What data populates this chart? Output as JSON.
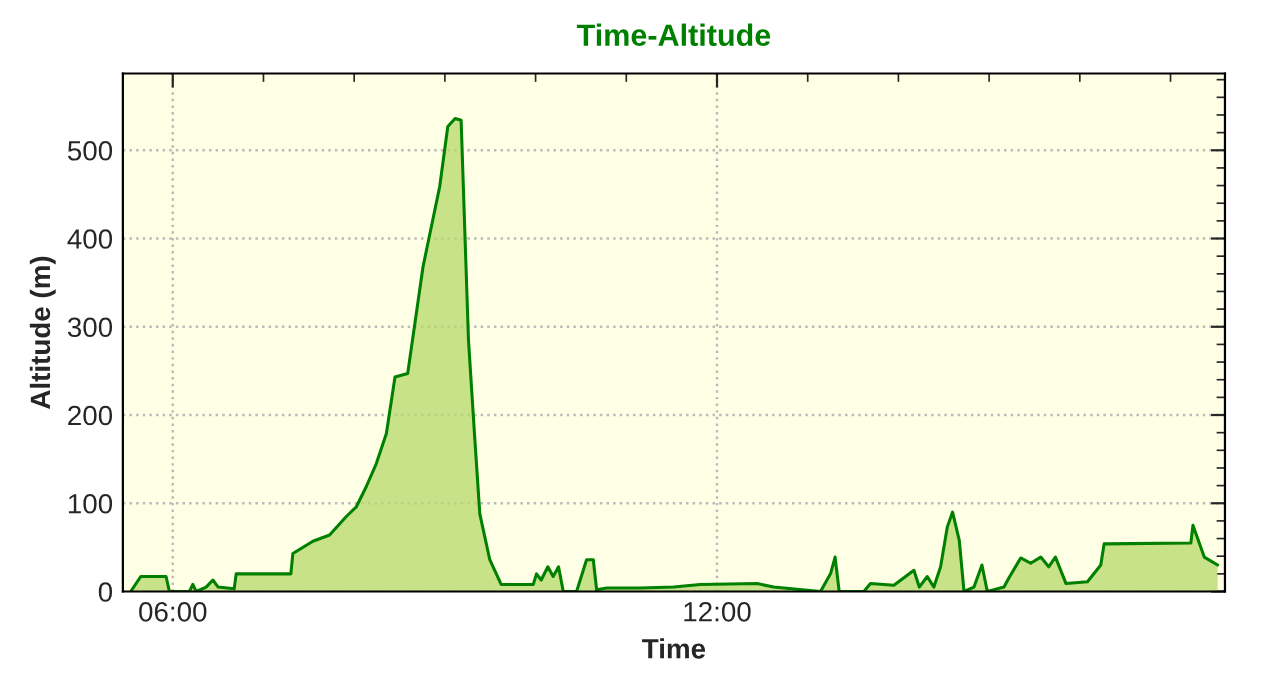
{
  "chart_data": {
    "type": "area",
    "title": "Time-Altitude",
    "xlabel": "Time",
    "ylabel": "Altitude (m)",
    "x": [
      5.536,
      5.647,
      5.926,
      5.963,
      6.184,
      6.221,
      6.258,
      6.368,
      6.442,
      6.5,
      6.677,
      6.699,
      7.302,
      7.324,
      7.545,
      7.729,
      7.913,
      8.024,
      8.134,
      8.244,
      8.355,
      8.45,
      8.59,
      8.759,
      8.943,
      9.032,
      9.113,
      9.179,
      9.26,
      9.326,
      9.385,
      9.495,
      9.62,
      9.974,
      10.01,
      10.062,
      10.135,
      10.194,
      10.253,
      10.305,
      10.452,
      10.562,
      10.636,
      10.673,
      10.783,
      11.151,
      11.522,
      11.816,
      12.442,
      12.625,
      13.141,
      13.251,
      13.302,
      13.347,
      13.619,
      13.692,
      13.95,
      14.171,
      14.23,
      14.318,
      14.391,
      14.465,
      14.539,
      14.597,
      14.671,
      14.723,
      14.833,
      14.921,
      14.98,
      15.164,
      15.216,
      15.348,
      15.458,
      15.569,
      15.657,
      15.731,
      15.848,
      16.084,
      16.231,
      16.268,
      17.224,
      17.247,
      17.372,
      17.519
    ],
    "series": [
      {
        "color": "#008000",
        "values": [
          0,
          17,
          17,
          0,
          0,
          8,
          0,
          5,
          13,
          5,
          3,
          20,
          20,
          43,
          57,
          64,
          85,
          96,
          119,
          145,
          179,
          243,
          247,
          368,
          459,
          527,
          536,
          534,
          285,
          179,
          88,
          36,
          8,
          8,
          20,
          13,
          28,
          17,
          28,
          0,
          0,
          36,
          36,
          2,
          4,
          4,
          5,
          8,
          9,
          5,
          0,
          20,
          39,
          0,
          0,
          9,
          7,
          24,
          5,
          17,
          5,
          28,
          73,
          90,
          58,
          0,
          5,
          30,
          0,
          5,
          15,
          38,
          32,
          39,
          28,
          39,
          9,
          11,
          30,
          54,
          55,
          75,
          39,
          30
        ]
      }
    ],
    "xlim": [
      5.45,
      17.6
    ],
    "xticks": [
      {
        "value": 6,
        "label": "06:00"
      },
      {
        "value": 7,
        "label": null
      },
      {
        "value": 8,
        "label": null
      },
      {
        "value": 9,
        "label": null
      },
      {
        "value": 10,
        "label": null
      },
      {
        "value": 11,
        "label": null
      },
      {
        "value": 12,
        "label": "12:00"
      },
      {
        "value": 13,
        "label": null
      },
      {
        "value": 14,
        "label": null
      },
      {
        "value": 15,
        "label": null
      },
      {
        "value": 16,
        "label": null
      },
      {
        "value": 17,
        "label": null
      }
    ],
    "ylim": [
      0,
      587
    ],
    "yticks": [
      0,
      {
        "value": 20,
        "label": null
      },
      {
        "value": 40,
        "label": null
      },
      {
        "value": 60,
        "label": null
      },
      {
        "value": 80,
        "label": null
      },
      100,
      {
        "value": 120,
        "label": null
      },
      {
        "value": 140,
        "label": null
      },
      {
        "value": 160,
        "label": null
      },
      {
        "value": 180,
        "label": null
      },
      200,
      {
        "value": 220,
        "label": null
      },
      {
        "value": 240,
        "label": null
      },
      {
        "value": 260,
        "label": null
      },
      {
        "value": 280,
        "label": null
      },
      300,
      {
        "value": 320,
        "label": null
      },
      {
        "value": 340,
        "label": null
      },
      {
        "value": 360,
        "label": null
      },
      {
        "value": 380,
        "label": null
      },
      400,
      {
        "value": 420,
        "label": null
      },
      {
        "value": 440,
        "label": null
      },
      {
        "value": 460,
        "label": null
      },
      {
        "value": 480,
        "label": null
      },
      500,
      {
        "value": 520,
        "label": null
      },
      {
        "value": 540,
        "label": null
      },
      {
        "value": 560,
        "label": null
      },
      {
        "value": 580,
        "label": null
      }
    ],
    "grid": true,
    "legend": false,
    "line_style": "solid",
    "marker": "none"
  }
}
